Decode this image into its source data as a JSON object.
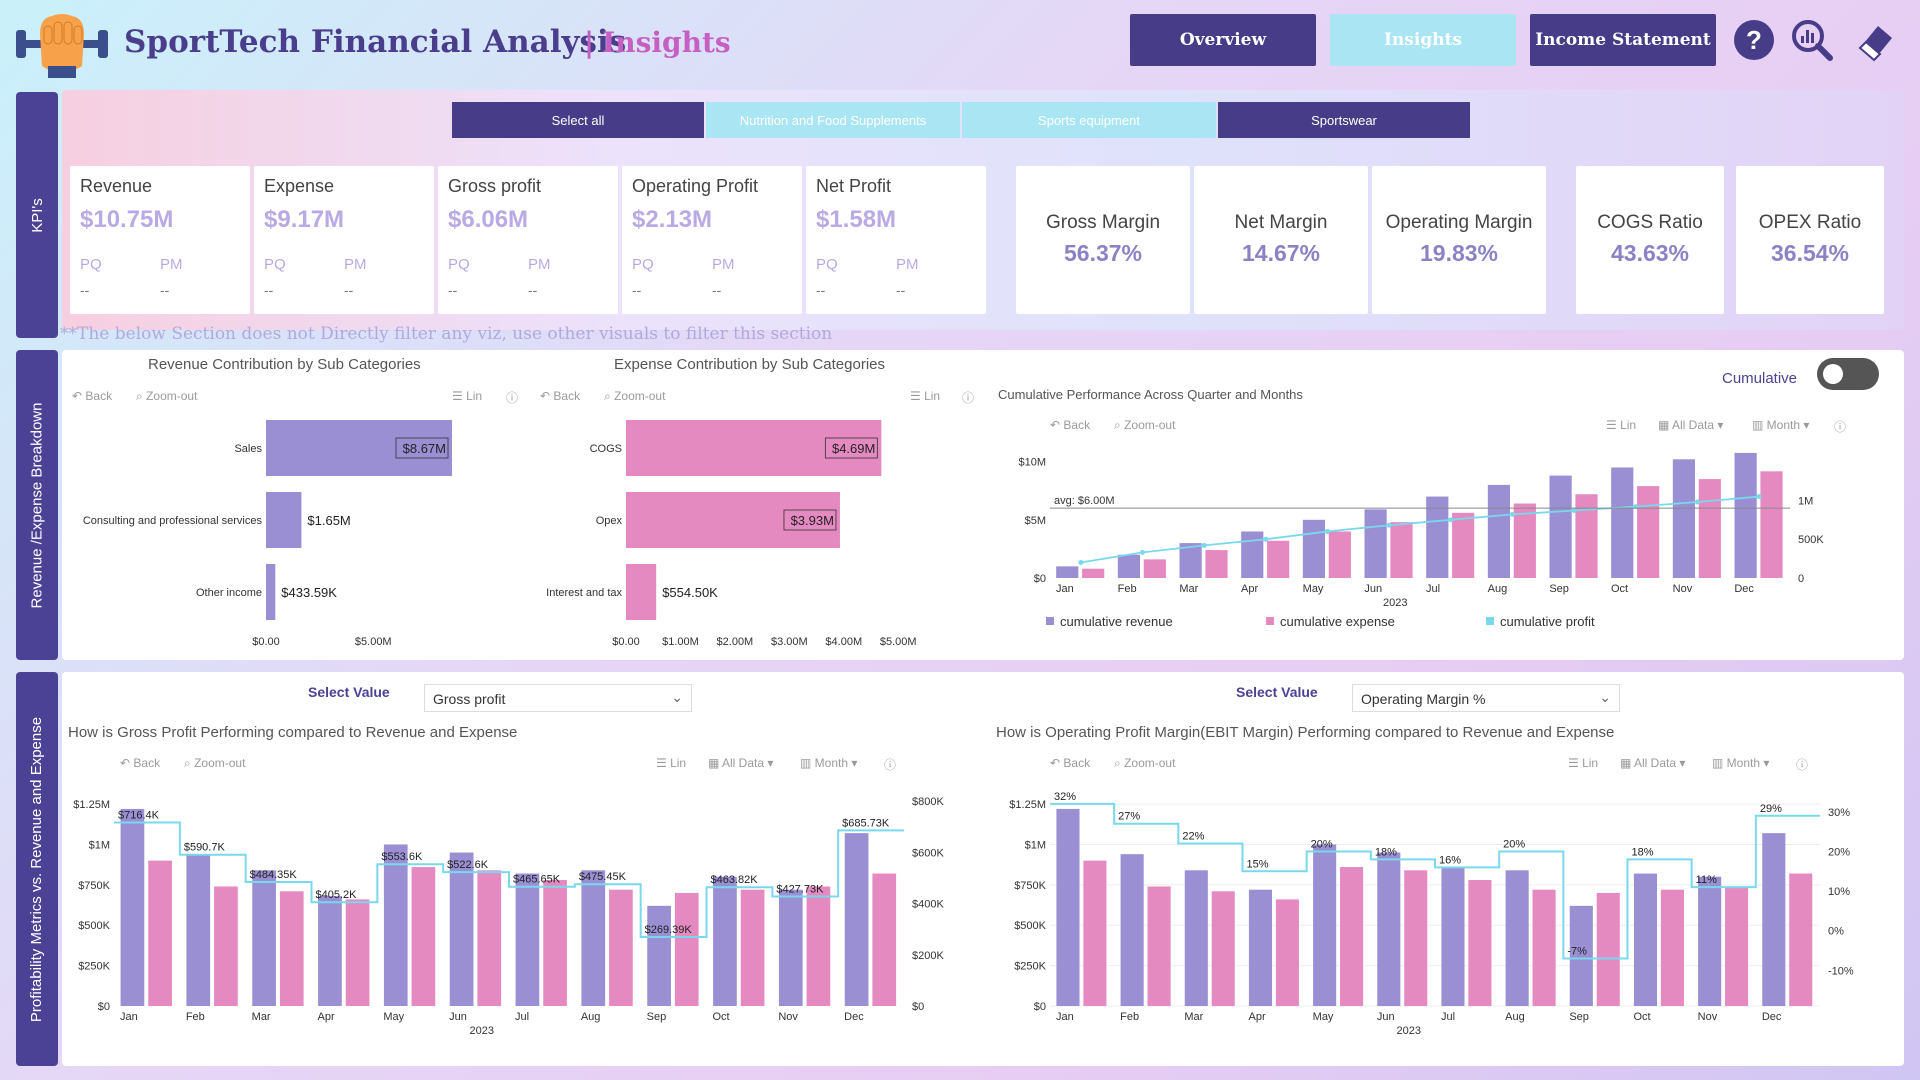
{
  "header": {
    "title": "SportTech Financial Analysis",
    "subtitle": "Insights",
    "nav": [
      {
        "label": "Overview",
        "style": "dark"
      },
      {
        "label": "Insights",
        "style": "light"
      },
      {
        "label": "Income Statement",
        "style": "dark"
      }
    ],
    "icons": [
      "help-icon",
      "zoom-chart-icon",
      "eraser-icon"
    ]
  },
  "side_labels": {
    "kpis": "KPI's",
    "breakdown": "Revenue /Expense Breakdown",
    "profitability": "Profitability  Metrics vs. Revenue and Expense"
  },
  "slicer": [
    {
      "label": "Select all",
      "style": "dark"
    },
    {
      "label": "Nutrition and Food Supplements",
      "style": "light"
    },
    {
      "label": "Sports equipment",
      "style": "light"
    },
    {
      "label": "Sportswear",
      "style": "dark"
    }
  ],
  "kpis": [
    {
      "title": "Revenue",
      "value": "$10.75M",
      "pq": "PQ",
      "pm": "PM",
      "pq_val": "--",
      "pm_val": "--"
    },
    {
      "title": "Expense",
      "value": "$9.17M",
      "pq": "PQ",
      "pm": "PM",
      "pq_val": "--",
      "pm_val": "--"
    },
    {
      "title": "Gross profit",
      "value": "$6.06M",
      "pq": "PQ",
      "pm": "PM",
      "pq_val": "--",
      "pm_val": "--"
    },
    {
      "title": "Operating Profit",
      "value": "$2.13M",
      "pq": "PQ",
      "pm": "PM",
      "pq_val": "--",
      "pm_val": "--"
    },
    {
      "title": "Net Profit",
      "value": "$1.58M",
      "pq": "PQ",
      "pm": "PM",
      "pq_val": "--",
      "pm_val": "--"
    }
  ],
  "ratios": [
    {
      "title": "Gross Margin",
      "value": "56.37%"
    },
    {
      "title": "Net Margin",
      "value": "14.67%"
    },
    {
      "title": "Operating Margin",
      "value": "19.83%"
    },
    {
      "title": "COGS Ratio",
      "value": "43.63%"
    },
    {
      "title": "OPEX Ratio",
      "value": "36.54%"
    }
  ],
  "note": "**The below Section does not Directly filter any viz, use other visuals to filter this section",
  "toolbar": {
    "back": "Back",
    "zoom": "Zoom-out",
    "lin": "Lin",
    "all_data": "All Data",
    "month": "Month"
  },
  "cumulative_label": "Cumulative",
  "colors": {
    "revenue": "#9b8fd4",
    "expense": "#e58ac1",
    "profit": "#79d9ec",
    "dark": "#473c87"
  },
  "chart_data": [
    {
      "type": "bar",
      "title": "Revenue Contribution by Sub Categories",
      "categories": [
        "Sales",
        "Consulting and professional services",
        "Other income"
      ],
      "values": [
        8.67,
        1.65,
        0.43359
      ],
      "labels": [
        "$8.67M",
        "$1.65M",
        "$433.59K"
      ],
      "x_ticks": [
        "$0.00",
        "$5.00M"
      ],
      "xlim": [
        0,
        11
      ]
    },
    {
      "type": "bar",
      "title": "Expense Contribution by Sub Categories",
      "categories": [
        "COGS",
        "Opex",
        "Interest and tax"
      ],
      "values": [
        4.69,
        3.93,
        0.5545
      ],
      "labels": [
        "$4.69M",
        "$3.93M",
        "$554.50K"
      ],
      "x_ticks": [
        "$0.00",
        "$1.00M",
        "$2.00M",
        "$3.00M",
        "$4.00M",
        "$5.00M"
      ],
      "xlim": [
        0,
        5.4
      ]
    },
    {
      "type": "bar",
      "title": "Cumulative Performance Across Quarter and Months",
      "categories": [
        "Jan",
        "Feb",
        "Mar",
        "Apr",
        "May",
        "Jun",
        "Jul",
        "Aug",
        "Sep",
        "Oct",
        "Nov",
        "Dec"
      ],
      "x_year": "2023",
      "avg_label": "avg: $6.00M",
      "avg_value": 6.0,
      "y_ticks": [
        "$0",
        "$5M",
        "$10M"
      ],
      "y2_ticks": [
        "0",
        "500K",
        "1M"
      ],
      "ylim": [
        0,
        11
      ],
      "y2lim": [
        0,
        1.65
      ],
      "series": [
        {
          "name": "cumulative revenue",
          "values": [
            1.0,
            2.0,
            3.0,
            4.0,
            5.0,
            5.9,
            7.0,
            8.0,
            8.8,
            9.5,
            10.2,
            10.75
          ]
        },
        {
          "name": "cumulative expense",
          "values": [
            0.8,
            1.6,
            2.4,
            3.2,
            4.0,
            4.8,
            5.6,
            6.4,
            7.2,
            7.9,
            8.5,
            9.17
          ]
        },
        {
          "name": "cumulative profit",
          "values": [
            0.2,
            0.33,
            0.42,
            0.5,
            0.6,
            0.68,
            0.75,
            0.82,
            0.87,
            0.92,
            0.98,
            1.05
          ]
        }
      ]
    },
    {
      "type": "bar",
      "title": "How is Gross Profit Performing compared to Revenue and Expense",
      "select_label": "Select Value",
      "select_value": "Gross profit",
      "categories": [
        "Jan",
        "Feb",
        "Mar",
        "Apr",
        "May",
        "Jun",
        "Jul",
        "Aug",
        "Sep",
        "Oct",
        "Nov",
        "Dec"
      ],
      "x_year": "2023",
      "y_ticks": [
        "$0",
        "$250K",
        "$500K",
        "$750K",
        "$1M",
        "$1.25M"
      ],
      "y2_ticks": [
        "$0",
        "$200K",
        "$400K",
        "$600K",
        "$800K"
      ],
      "ylim": [
        0,
        1.3
      ],
      "y2lim": [
        0,
        820
      ],
      "series": [
        {
          "name": "Revenue",
          "values": [
            1.22,
            0.94,
            0.84,
            0.68,
            1.0,
            0.95,
            0.82,
            0.84,
            0.62,
            0.8,
            0.72,
            1.07
          ]
        },
        {
          "name": "Expense",
          "values": [
            0.9,
            0.74,
            0.71,
            0.66,
            0.86,
            0.84,
            0.78,
            0.72,
            0.7,
            0.72,
            0.74,
            0.82
          ]
        },
        {
          "name": "Gross profit",
          "values": [
            716.4,
            590.7,
            484.35,
            405.2,
            553.6,
            522.6,
            465.65,
            475.45,
            269.39,
            463.82,
            427.73,
            685.73
          ]
        }
      ],
      "line_labels": [
        "$716.4K",
        "$590.7K",
        "$484.35K",
        "$405.2K",
        "$553.6K",
        "$522.6K",
        "$465.65K",
        "$475.45K",
        "$269.39K",
        "$463.82K",
        "$427.73K",
        "$685.73K"
      ]
    },
    {
      "type": "bar",
      "title": "How is Operating Profit Margin(EBIT Margin) Performing compared to Revenue and Expense",
      "select_label": "Select Value",
      "select_value": "Operating Margin %",
      "categories": [
        "Jan",
        "Feb",
        "Mar",
        "Apr",
        "May",
        "Jun",
        "Jul",
        "Aug",
        "Sep",
        "Oct",
        "Nov",
        "Dec"
      ],
      "x_year": "2023",
      "y_ticks": [
        "$0",
        "$250K",
        "$500K",
        "$750K",
        "$1M",
        "$1.25M"
      ],
      "y2_ticks": [
        "-10%",
        "0%",
        "10%",
        "20%",
        "30%"
      ],
      "ylim": [
        0,
        1.3
      ],
      "y2lim": [
        -19,
        34
      ],
      "series": [
        {
          "name": "Revenue",
          "values": [
            1.22,
            0.94,
            0.84,
            0.72,
            1.0,
            0.95,
            0.86,
            0.84,
            0.62,
            0.82,
            0.8,
            1.07
          ]
        },
        {
          "name": "Expense",
          "values": [
            0.9,
            0.74,
            0.71,
            0.66,
            0.86,
            0.84,
            0.78,
            0.72,
            0.7,
            0.72,
            0.74,
            0.82
          ]
        },
        {
          "name": "Operating Margin %",
          "values": [
            32,
            27,
            22,
            15,
            20,
            18,
            16,
            20,
            -7,
            18,
            11,
            29
          ]
        }
      ],
      "line_labels": [
        "32%",
        "27%",
        "22%",
        "15%",
        "20%",
        "18%",
        "16%",
        "20%",
        "-7%",
        "18%",
        "11%",
        "29%"
      ]
    }
  ]
}
